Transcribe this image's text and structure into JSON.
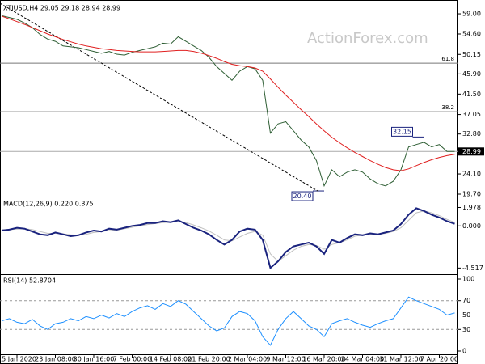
{
  "chart_data": [
    {
      "type": "line",
      "title": "XTIUSD,H4  29.05 29.18 28.94 28.99",
      "watermark": "ActionForex.com",
      "ylim": [
        19.35,
        61.3
      ],
      "yticks": [
        {
          "value": 59,
          "label": "59.00"
        },
        {
          "value": 54.6,
          "label": "54.60"
        },
        {
          "value": 50.15,
          "label": "50.15"
        },
        {
          "value": 45.9,
          "label": "45.90"
        },
        {
          "value": 41.5,
          "label": "41.50"
        },
        {
          "value": 37.05,
          "label": "37.05"
        },
        {
          "value": 32.8,
          "label": "32.80"
        },
        {
          "value": 24.1,
          "label": "24.10"
        },
        {
          "value": 19.7,
          "label": "19.70"
        }
      ],
      "series": [
        {
          "color": "#2e5e34",
          "values": [
            58.6,
            58.2,
            57.8,
            57.0,
            56.0,
            54.5,
            53.5,
            53.0,
            52.0,
            51.8,
            51.6,
            51.2,
            50.8,
            50.4,
            50.8,
            50.2,
            50.0,
            50.6,
            51.0,
            51.4,
            51.8,
            52.6,
            52.4,
            54.0,
            53.0,
            52.0,
            51.0,
            49.5,
            47.5,
            46.0,
            44.5,
            46.5,
            47.5,
            47.0,
            44.5,
            33.0,
            35.0,
            35.5,
            33.5,
            31.5,
            30.0,
            27.0,
            21.5,
            25.0,
            23.5,
            24.5,
            25.0,
            24.5,
            23.0,
            22.0,
            21.5,
            22.5,
            25.0,
            30.0,
            30.5,
            31.0,
            30.0,
            30.5,
            29.0,
            28.99
          ]
        },
        {
          "color": "#e02020",
          "values": [
            58.5,
            57.9,
            57.3,
            56.7,
            56.0,
            55.3,
            54.6,
            54.0,
            53.4,
            52.9,
            52.4,
            52.0,
            51.7,
            51.4,
            51.2,
            51.0,
            50.9,
            50.8,
            50.7,
            50.7,
            50.7,
            50.8,
            50.9,
            51.0,
            51.0,
            50.8,
            50.4,
            49.9,
            49.3,
            48.6,
            48.0,
            47.7,
            47.5,
            47.2,
            46.5,
            44.8,
            43.0,
            41.3,
            39.7,
            38.1,
            36.6,
            35.0,
            33.5,
            32.1,
            30.9,
            29.8,
            28.8,
            27.9,
            27.0,
            26.2,
            25.5,
            25.0,
            24.8,
            25.2,
            25.9,
            26.6,
            27.2,
            27.7,
            28.1,
            28.4
          ]
        }
      ],
      "levels": [
        {
          "label": "61.8",
          "value": 48.24
        },
        {
          "label": "38.2",
          "value": 37.66
        }
      ],
      "annotations": [
        {
          "label": "32.15",
          "value": 32.15,
          "x": 55
        },
        {
          "label": "20.40",
          "value": 20.4,
          "x": 42
        }
      ],
      "last_price": {
        "value": 28.99,
        "label": "28.99"
      }
    },
    {
      "type": "line",
      "title": "MACD(12,26,9) 0.220 0.375",
      "ylim": [
        -4.92,
        2.54
      ],
      "yticks": [
        {
          "value": 1.978,
          "label": "1.978"
        },
        {
          "value": 0,
          "label": "0.000"
        },
        {
          "value": -4.517,
          "label": "-4.517"
        }
      ],
      "series": [
        {
          "color": "#c0c0c0",
          "values": [
            -0.4,
            -0.4,
            -0.35,
            -0.3,
            -0.4,
            -0.6,
            -0.8,
            -0.8,
            -0.85,
            -0.95,
            -1.0,
            -0.9,
            -0.7,
            -0.6,
            -0.5,
            -0.45,
            -0.3,
            -0.15,
            0.0,
            0.15,
            0.25,
            0.35,
            0.4,
            0.45,
            0.35,
            0.1,
            -0.2,
            -0.55,
            -1.0,
            -1.5,
            -1.6,
            -1.2,
            -0.8,
            -0.6,
            -1.0,
            -3.0,
            -3.8,
            -3.2,
            -2.6,
            -2.2,
            -2.0,
            -2.1,
            -2.5,
            -2.0,
            -1.8,
            -1.5,
            -1.1,
            -1.0,
            -0.9,
            -0.9,
            -0.8,
            -0.6,
            -0.2,
            0.6,
            1.4,
            1.6,
            1.4,
            1.1,
            0.7,
            0.375
          ]
        },
        {
          "color": "#1a237e",
          "values": [
            -0.5,
            -0.4,
            -0.2,
            -0.3,
            -0.6,
            -0.9,
            -1.0,
            -0.7,
            -0.9,
            -1.1,
            -1.0,
            -0.7,
            -0.5,
            -0.6,
            -0.3,
            -0.4,
            -0.2,
            0.0,
            0.1,
            0.3,
            0.3,
            0.5,
            0.4,
            0.6,
            0.2,
            -0.2,
            -0.5,
            -0.9,
            -1.5,
            -2.0,
            -1.5,
            -0.6,
            -0.3,
            -0.4,
            -1.5,
            -4.5,
            -3.8,
            -2.8,
            -2.2,
            -2.0,
            -1.8,
            -2.2,
            -3.0,
            -1.5,
            -1.8,
            -1.3,
            -0.9,
            -1.0,
            -0.8,
            -0.9,
            -0.7,
            -0.5,
            0.2,
            1.2,
            1.9,
            1.6,
            1.2,
            0.9,
            0.5,
            0.22
          ]
        }
      ]
    },
    {
      "type": "line",
      "title": "RSI(14) 52.8704",
      "ylim": [
        0,
        100
      ],
      "yticks": [
        100,
        70,
        50,
        30,
        0
      ],
      "dashed_levels": [
        70,
        30
      ],
      "categories": [
        null,
        null,
        "15 Jan 2020",
        null,
        null,
        null,
        null,
        "23 Jan 08:00",
        null,
        null,
        null,
        null,
        "30 Jan 16:00",
        null,
        null,
        null,
        null,
        "7 Feb 00:00",
        null,
        null,
        null,
        null,
        "14 Feb 08:00",
        null,
        null,
        null,
        null,
        "21 Feb 20:00",
        null,
        null,
        null,
        null,
        "2 Mar 04:00",
        null,
        null,
        null,
        null,
        "9 Mar 12:00",
        null,
        null,
        null,
        null,
        "16 Mar 20:00",
        null,
        null,
        null,
        null,
        "24 Mar 04:00",
        null,
        null,
        null,
        null,
        "31 Mar 12:00",
        null,
        null,
        null,
        null,
        "7 Apr 20:00",
        null,
        null
      ],
      "series": [
        {
          "color": "#1e90ff",
          "values": [
            42,
            45,
            40,
            38,
            44,
            35,
            30,
            38,
            40,
            45,
            42,
            48,
            45,
            50,
            46,
            52,
            48,
            55,
            60,
            63,
            58,
            66,
            62,
            70,
            65,
            55,
            45,
            35,
            28,
            32,
            48,
            55,
            52,
            42,
            20,
            8,
            30,
            45,
            55,
            45,
            35,
            30,
            20,
            38,
            42,
            45,
            40,
            36,
            33,
            38,
            42,
            45,
            60,
            75,
            70,
            66,
            62,
            58,
            50,
            52.87
          ]
        }
      ]
    }
  ]
}
